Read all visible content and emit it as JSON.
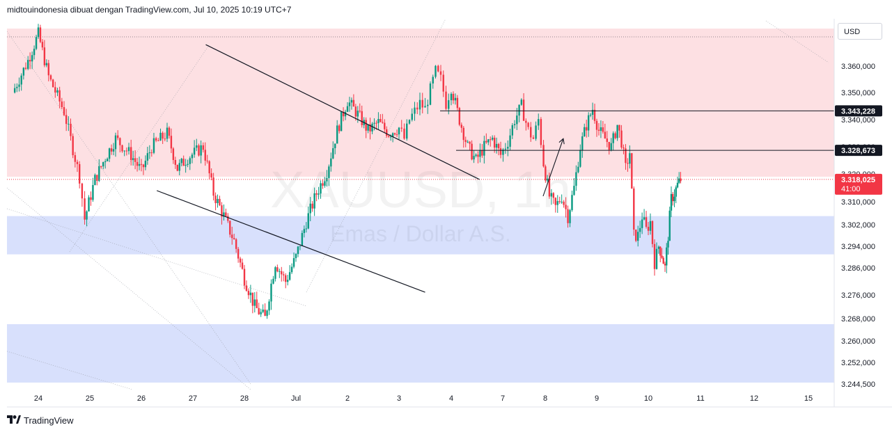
{
  "header": {
    "caption": "midtouindonesia dibuat dengan TradingView.com, Jul 10, 2025 10:19 UTC+7"
  },
  "currency": "USD",
  "watermark": {
    "symbol": "XAUUSD, 1h",
    "description": "Emas / Dollar A.S."
  },
  "footer": {
    "brand": "TradingView",
    "logo_icon": "tradingview-logo-icon"
  },
  "colors": {
    "up": "#089981",
    "down": "#f23645",
    "upper_zone": "#fde0e3",
    "demand_zone": "#d8e0fc",
    "trendline": "#131722",
    "last_price": "#f23645"
  },
  "chart_data": {
    "type": "candlestick",
    "symbol": "XAUUSD",
    "timeframe": "1h",
    "ylim": [
      3241,
      3377
    ],
    "x_ticks": [
      "24",
      "25",
      "26",
      "27",
      "28",
      "Jul",
      "2",
      "3",
      "4",
      "7",
      "8",
      "9",
      "10",
      "11",
      "12",
      "15"
    ],
    "y_ticks": [
      "3.360,000",
      "3.350,000",
      "3.340,000",
      "3.330,000",
      "3.320,000",
      "3.310,000",
      "3.302,000",
      "3.294,000",
      "3.286,000",
      "3.276,000",
      "3.268,000",
      "3.260,000",
      "3.252,000",
      "3.244,500"
    ],
    "price_labels": [
      {
        "label": "3.343,228",
        "value": 3343.228,
        "style": "dark"
      },
      {
        "label": "3.328,673",
        "value": 3328.673,
        "style": "dark"
      },
      {
        "label": "3.318,025",
        "sub": "41:00",
        "value": 3318.025,
        "style": "last"
      }
    ],
    "zones": [
      {
        "name": "upper-zone",
        "from": 3319,
        "to": 3374,
        "color": "#fde0e3"
      },
      {
        "name": "demand-zone-1",
        "from": 3291,
        "to": 3305,
        "color": "#d8e0fc"
      },
      {
        "name": "demand-zone-2",
        "from": 3245,
        "to": 3266,
        "color": "#d8e0fc"
      }
    ],
    "close_path": [
      [
        23.5,
        3350
      ],
      [
        23.8,
        3362
      ],
      [
        24.0,
        3372
      ],
      [
        24.2,
        3356
      ],
      [
        24.5,
        3343
      ],
      [
        24.8,
        3319
      ],
      [
        24.9,
        3304
      ],
      [
        25.1,
        3318
      ],
      [
        25.3,
        3326
      ],
      [
        25.5,
        3333
      ],
      [
        25.8,
        3327
      ],
      [
        26.0,
        3321
      ],
      [
        26.2,
        3330
      ],
      [
        26.5,
        3335
      ],
      [
        26.7,
        3322
      ],
      [
        26.9,
        3326
      ],
      [
        27.2,
        3330
      ],
      [
        27.4,
        3313
      ],
      [
        27.6,
        3305
      ],
      [
        27.8,
        3296
      ],
      [
        28.0,
        3282
      ],
      [
        28.2,
        3272
      ],
      [
        28.4,
        3268
      ],
      [
        28.6,
        3288
      ],
      [
        28.8,
        3281
      ],
      [
        29.0,
        3290
      ],
      [
        29.2,
        3303
      ],
      [
        29.4,
        3313
      ],
      [
        29.6,
        3321
      ],
      [
        29.8,
        3336
      ],
      [
        30.0,
        3347
      ],
      [
        30.2,
        3342
      ],
      [
        30.4,
        3336
      ],
      [
        30.6,
        3339
      ],
      [
        30.8,
        3335
      ],
      [
        31.0,
        3337
      ],
      [
        31.2,
        3333
      ],
      [
        31.4,
        3340
      ],
      [
        31.6,
        3343
      ],
      [
        31.8,
        3346
      ],
      [
        32.0,
        3344
      ],
      [
        32.2,
        3351
      ],
      [
        32.4,
        3358
      ],
      [
        32.6,
        3355
      ],
      [
        32.8,
        3346
      ],
      [
        33.0,
        3352
      ],
      [
        33.2,
        3340
      ],
      [
        33.4,
        3330
      ],
      [
        33.6,
        3325
      ],
      [
        33.8,
        3330
      ],
      [
        34.0,
        3333
      ],
      [
        34.2,
        3327
      ],
      [
        34.4,
        3332
      ],
      [
        34.6,
        3340
      ],
      [
        34.8,
        3345
      ],
      [
        35.0,
        3336
      ],
      [
        35.2,
        3333
      ],
      [
        35.4,
        3340
      ],
      [
        35.6,
        3324
      ],
      [
        35.8,
        3312
      ],
      [
        36.0,
        3308
      ],
      [
        36.2,
        3312
      ],
      [
        36.4,
        3305
      ],
      [
        36.6,
        3315
      ],
      [
        36.8,
        3330
      ],
      [
        37.0,
        3338
      ],
      [
        37.2,
        3344
      ],
      [
        37.4,
        3336
      ],
      [
        37.6,
        3333
      ],
      [
        37.8,
        3330
      ],
      [
        38.0,
        3338
      ],
      [
        38.2,
        3332
      ],
      [
        38.4,
        3322
      ],
      [
        38.6,
        3328
      ],
      [
        38.8,
        3298
      ],
      [
        39.0,
        3298
      ],
      [
        39.2,
        3305
      ],
      [
        39.4,
        3300
      ],
      [
        39.6,
        3303
      ],
      [
        39.8,
        3288
      ],
      [
        40.0,
        3294
      ],
      [
        40.2,
        3291
      ],
      [
        40.4,
        3286
      ],
      [
        40.6,
        3298
      ],
      [
        40.8,
        3311
      ],
      [
        41.0,
        3313
      ],
      [
        41.2,
        3316
      ],
      [
        41.4,
        3318
      ]
    ],
    "trendlines": [
      {
        "name": "resistance",
        "from": [
          3.25,
          3368
        ],
        "to": [
          8.55,
          3318
        ]
      },
      {
        "name": "support",
        "from": [
          2.3,
          3314
        ],
        "to": [
          7.5,
          3277
        ]
      }
    ],
    "projection_arrow": {
      "from": [
        9.95,
        3312
      ],
      "to": [
        10.35,
        3333
      ]
    }
  }
}
